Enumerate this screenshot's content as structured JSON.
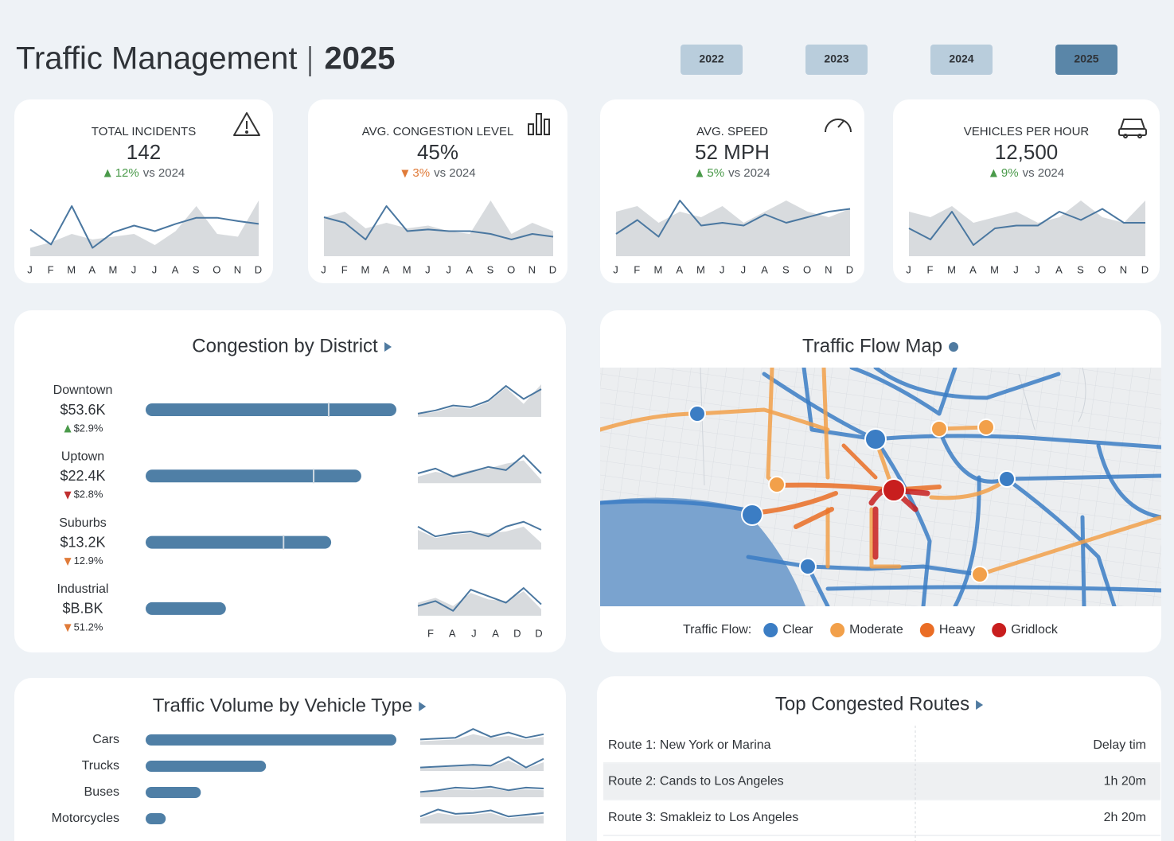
{
  "header": {
    "title": "Traffic Management",
    "year": "2025"
  },
  "year_buttons": [
    {
      "label": "2022",
      "selected": false
    },
    {
      "label": "2023",
      "selected": false
    },
    {
      "label": "2024",
      "selected": false
    },
    {
      "label": "2025",
      "selected": true
    }
  ],
  "kpis": [
    {
      "label": "TOTAL INCIDENTS",
      "value": "142",
      "change": "12%",
      "direction": "up",
      "color": "#4a9a4a",
      "comparison": "vs 2024",
      "months": [
        "J",
        "F",
        "M",
        "A",
        "M",
        "J",
        "J",
        "A",
        "S",
        "O",
        "N",
        "D"
      ],
      "ylim": [
        0,
        100
      ],
      "line": [
        48,
        21,
        90,
        15,
        43,
        55,
        45,
        58,
        69,
        69,
        63,
        58
      ],
      "area": [
        15,
        25,
        40,
        30,
        35,
        40,
        20,
        45,
        90,
        40,
        35,
        100
      ]
    },
    {
      "label": "AVG. CONGESTION LEVEL",
      "value": "45%",
      "change": "3%",
      "direction": "down",
      "color": "#e07b39",
      "comparison": "vs 2024",
      "months": [
        "J",
        "F",
        "M",
        "A",
        "M",
        "J",
        "J",
        "A",
        "S",
        "O",
        "N",
        "D"
      ],
      "ylim": [
        0,
        100
      ],
      "line": [
        70,
        60,
        30,
        90,
        45,
        48,
        45,
        45,
        40,
        30,
        40,
        35
      ],
      "area": [
        70,
        80,
        50,
        60,
        50,
        55,
        45,
        40,
        100,
        40,
        60,
        45
      ]
    },
    {
      "label": "AVG. SPEED",
      "value": "52 MPH",
      "change": "5%",
      "direction": "up",
      "color": "#4a9a4a",
      "comparison": "vs 2024",
      "months": [
        "J",
        "F",
        "M",
        "A",
        "M",
        "J",
        "J",
        "A",
        "S",
        "O",
        "N",
        "D"
      ],
      "ylim": [
        0,
        100
      ],
      "line": [
        40,
        65,
        35,
        100,
        55,
        60,
        55,
        75,
        60,
        70,
        80,
        85
      ],
      "area": [
        80,
        90,
        60,
        80,
        70,
        90,
        60,
        80,
        100,
        80,
        70,
        85
      ]
    },
    {
      "label": "VEHICLES PER HOUR",
      "value": "12,500",
      "change": "9%",
      "direction": "up",
      "color": "#4a9a4a",
      "comparison": "vs 2024",
      "months": [
        "J",
        "F",
        "M",
        "A",
        "M",
        "J",
        "J",
        "A",
        "S",
        "O",
        "N",
        "D"
      ],
      "ylim": [
        0,
        100
      ],
      "line": [
        50,
        30,
        80,
        20,
        50,
        55,
        55,
        80,
        65,
        85,
        60,
        60
      ],
      "area": [
        80,
        70,
        90,
        60,
        70,
        80,
        60,
        70,
        100,
        70,
        60,
        100
      ]
    }
  ],
  "districts": {
    "title": "Congestion by District",
    "xlim": [
      0,
      100
    ],
    "spark_ylim": [
      0,
      100
    ],
    "spark_axis": [
      "F",
      "A",
      "J",
      "A",
      "D",
      "D"
    ],
    "rows": [
      {
        "name": "Downtown",
        "value": "$53.6K",
        "change": "$2.9%",
        "direction": "up",
        "color": "#4a9a4a",
        "bar": 100,
        "target": 73,
        "line": [
          10,
          20,
          35,
          30,
          50,
          95,
          55,
          85
        ],
        "area": [
          10,
          15,
          30,
          25,
          45,
          90,
          40,
          100
        ]
      },
      {
        "name": "Uptown",
        "value": "$22.4K",
        "change": "$2.8%",
        "direction": "down",
        "color": "#c03030",
        "bar": 86,
        "target": 67,
        "line": [
          30,
          45,
          20,
          35,
          50,
          40,
          85,
          30
        ],
        "area": [
          20,
          35,
          25,
          40,
          45,
          60,
          70,
          10
        ]
      },
      {
        "name": "Suburbs",
        "value": "$13.2K",
        "change": "12.9%",
        "direction": "down",
        "color": "#e07b39",
        "bar": 74,
        "target": 55,
        "line": [
          70,
          40,
          50,
          55,
          40,
          70,
          85,
          60
        ],
        "area": [
          60,
          35,
          45,
          50,
          50,
          55,
          70,
          20
        ]
      },
      {
        "name": "Industrial",
        "value": "$B.BK",
        "change": "51.2%",
        "direction": "down",
        "color": "#e07b39",
        "bar": 32,
        "line": [
          30,
          45,
          15,
          80,
          60,
          40,
          85,
          35
        ],
        "area": [
          40,
          55,
          30,
          70,
          50,
          45,
          75,
          20
        ]
      }
    ]
  },
  "map": {
    "title": "Traffic Flow Map",
    "legend_label": "Traffic Flow:",
    "legend": [
      {
        "name": "Clear",
        "color": "#3b7dc4"
      },
      {
        "name": "Moderate",
        "color": "#f2a04a"
      },
      {
        "name": "Heavy",
        "color": "#ea6d25"
      },
      {
        "name": "Gridlock",
        "color": "#c81e1e"
      }
    ]
  },
  "vehicles": {
    "title": "Traffic Volume by Vehicle Type",
    "xlim": [
      0,
      100
    ],
    "spark_ylim": [
      0,
      100
    ],
    "rows": [
      {
        "name": "Cars",
        "bar": 100,
        "line": [
          30,
          35,
          40,
          90,
          45,
          70,
          40,
          60
        ],
        "area": [
          20,
          25,
          30,
          60,
          40,
          50,
          30,
          45
        ]
      },
      {
        "name": "Trucks",
        "bar": 48,
        "line": [
          20,
          25,
          30,
          35,
          30,
          80,
          20,
          70
        ],
        "area": [
          15,
          20,
          25,
          30,
          25,
          60,
          15,
          50
        ]
      },
      {
        "name": "Buses",
        "bar": 22,
        "line": [
          30,
          40,
          55,
          50,
          60,
          40,
          55,
          50
        ],
        "area": [
          25,
          35,
          45,
          40,
          50,
          35,
          45,
          40
        ]
      },
      {
        "name": "Motorcycles",
        "bar": 8,
        "line": [
          40,
          80,
          55,
          60,
          75,
          40,
          50,
          60
        ],
        "area": [
          30,
          60,
          45,
          50,
          60,
          30,
          40,
          45
        ]
      }
    ]
  },
  "routes": {
    "title": "Top Congested Routes",
    "rows": [
      [
        "Route 1: New York or Marina",
        "Delay tim"
      ],
      [
        "Route 2: Cands to Los Angeles",
        "1h 20m"
      ],
      [
        "Route 3: Smakleiz to Los Angeles",
        "2h 20m"
      ]
    ]
  }
}
